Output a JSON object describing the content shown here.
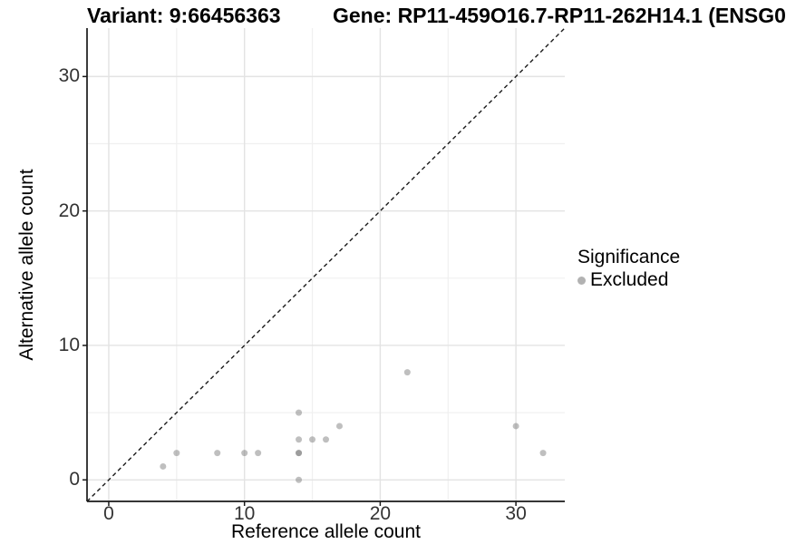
{
  "titles": {
    "variant": "Variant: 9:66456363",
    "gene": "Gene: RP11-459O16.7-RP11-262H14.1 (ENSG0"
  },
  "axes": {
    "x": {
      "label": "Reference allele count",
      "major_ticks": [
        0,
        10,
        20,
        30
      ],
      "minor_ticks": [
        5,
        15,
        25
      ]
    },
    "y": {
      "label": "Alternative allele count",
      "major_ticks": [
        0,
        10,
        20,
        30
      ],
      "minor_ticks": [
        5,
        15,
        25
      ]
    }
  },
  "legend": {
    "title": "Significance",
    "items": [
      {
        "label": "Excluded",
        "color": "#b2b2b2"
      }
    ]
  },
  "chart_data": {
    "type": "scatter",
    "title": "Variant: 9:66456363 | Gene: RP11-459O16.7-RP11-262H14.1 (ENSG0",
    "xlabel": "Reference allele count",
    "ylabel": "Alternative allele count",
    "xlim": [
      -1.6,
      33.6
    ],
    "ylim": [
      -1.6,
      33.6
    ],
    "grid": "major+minor",
    "legend_position": "right",
    "identity_line": {
      "shown": true,
      "style": "dashed",
      "slope": 1,
      "intercept": 0
    },
    "series": [
      {
        "name": "Excluded",
        "points": [
          [
            4,
            1
          ],
          [
            5,
            2
          ],
          [
            8,
            2
          ],
          [
            10,
            2
          ],
          [
            11,
            2
          ],
          [
            14,
            0
          ],
          [
            14,
            2
          ],
          [
            14,
            2
          ],
          [
            14,
            3
          ],
          [
            14,
            5
          ],
          [
            15,
            3
          ],
          [
            16,
            3
          ],
          [
            17,
            4
          ],
          [
            22,
            8
          ],
          [
            30,
            4
          ],
          [
            32,
            2
          ]
        ],
        "note": "point at (14,2) appears darker due to two overlapping points"
      }
    ]
  },
  "colors": {
    "point_fill": "#767676",
    "point_opacity": 0.47,
    "grid_major": "#e3e3e3",
    "grid_minor": "#f0f0f0",
    "axis_line": "#1a1a1a",
    "identity_line": "#1a1a1a",
    "tick_label": "#333333",
    "legend_key": "#b2b2b2",
    "background": "#ffffff"
  }
}
